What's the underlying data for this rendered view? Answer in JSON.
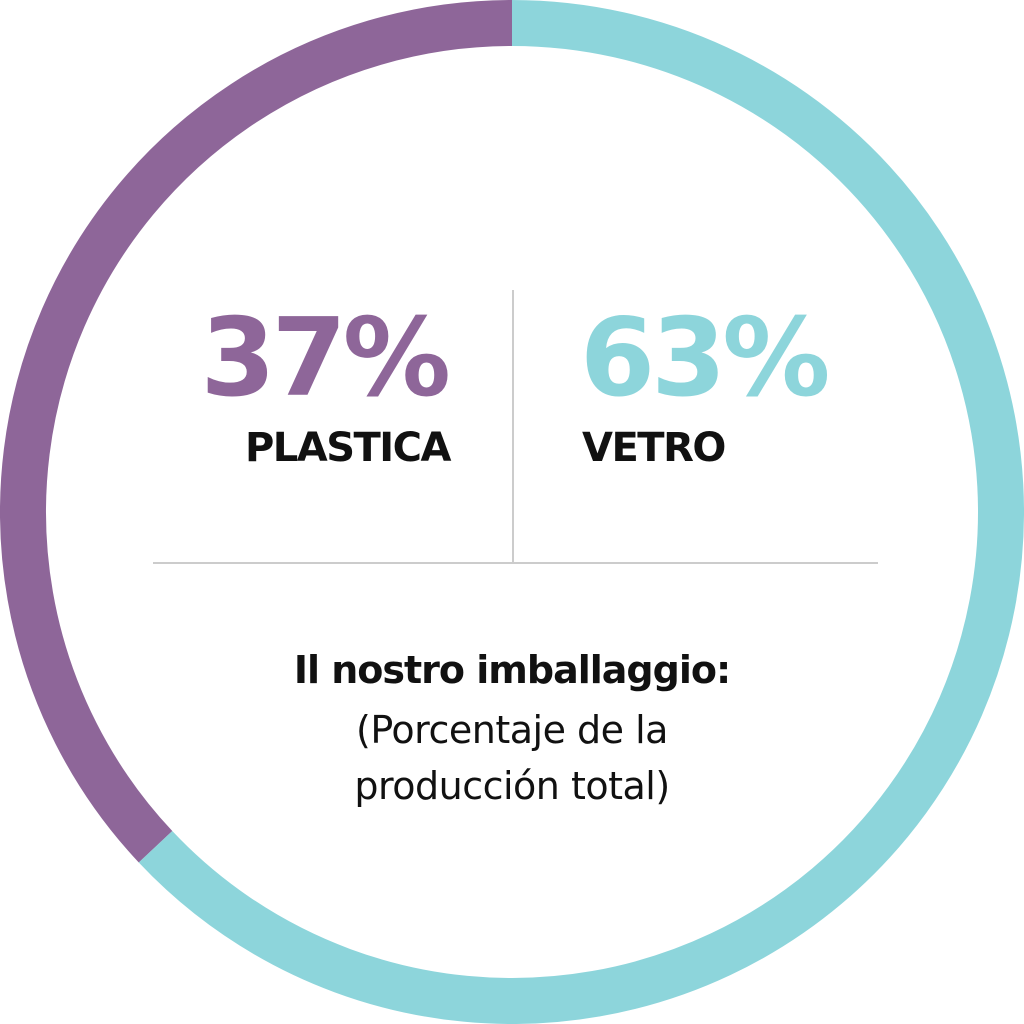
{
  "chart_data": {
    "type": "pie",
    "categories": [
      "PLASTICA",
      "VETRO"
    ],
    "values": [
      37,
      63
    ],
    "value_labels": [
      "37%",
      "63%"
    ],
    "colors": [
      "#8e6699",
      "#8dd5db"
    ],
    "title": "Il nostro imballaggio:",
    "subtitle": "(Porcentaje de la producción total)"
  }
}
